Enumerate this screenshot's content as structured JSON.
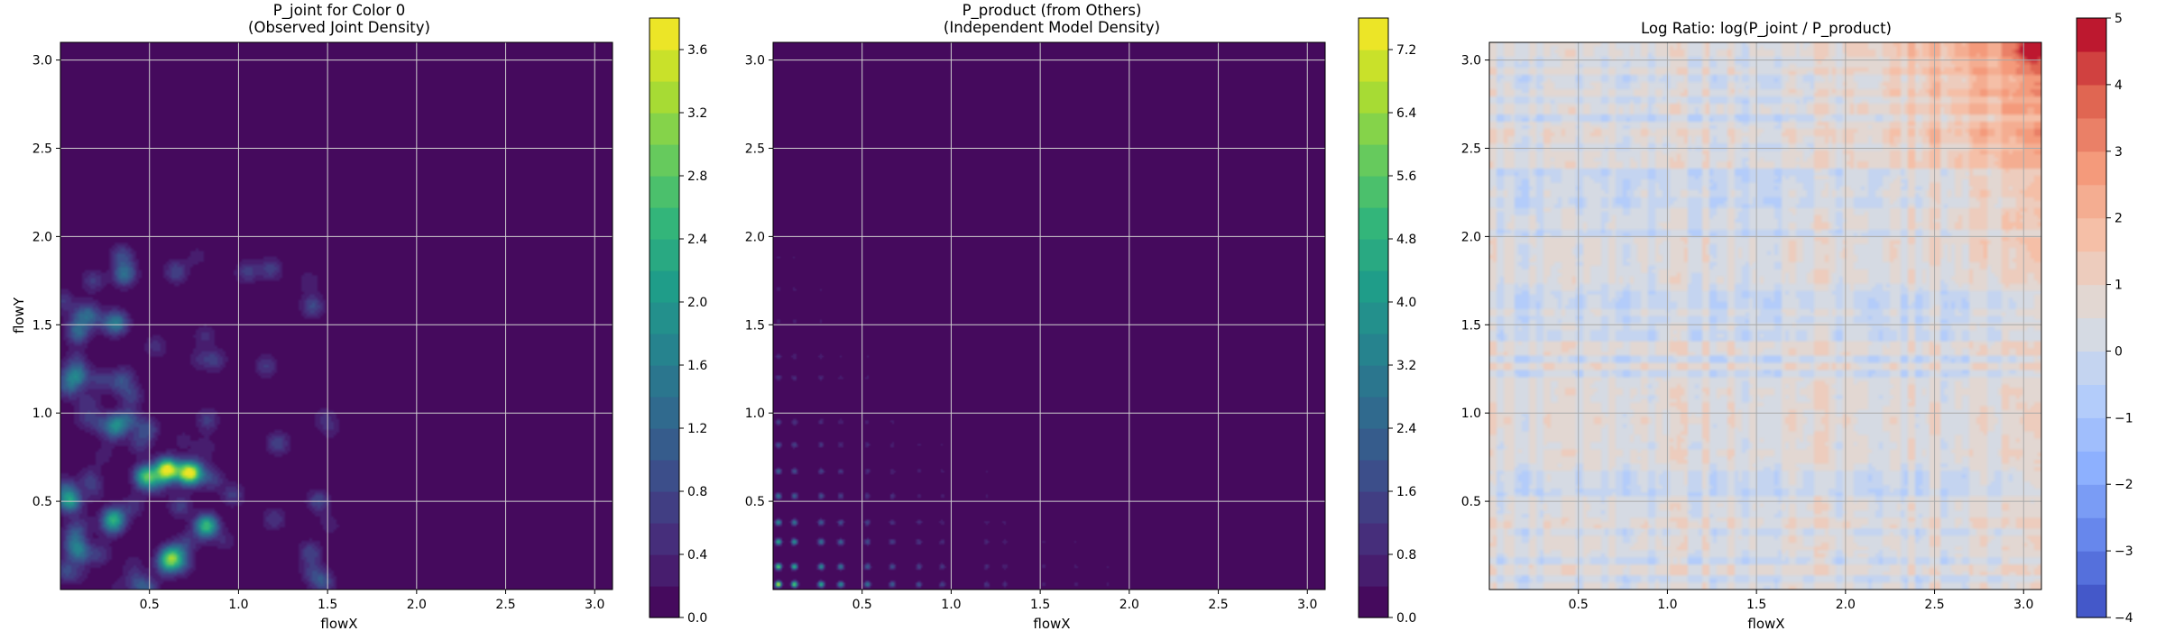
{
  "panels": [
    {
      "title_line1": "P_joint for Color 0",
      "title_line2": "(Observed Joint Density)",
      "xlabel": "flowX",
      "ylabel": "flowY",
      "colormap": "viridis",
      "colorbar_ticks": [
        "0.0",
        "0.4",
        "0.8",
        "1.2",
        "1.6",
        "2.0",
        "2.4",
        "2.8",
        "3.2",
        "3.6"
      ],
      "colorbar_range": [
        0.0,
        3.8
      ],
      "xticks": [
        "0.5",
        "1.0",
        "1.5",
        "2.0",
        "2.5",
        "3.0"
      ],
      "yticks": [
        "0.5",
        "1.0",
        "1.5",
        "2.0",
        "2.5",
        "3.0"
      ]
    },
    {
      "title_line1": "P_product (from Others)",
      "title_line2": "(Independent Model Density)",
      "xlabel": "flowX",
      "ylabel": "",
      "colormap": "viridis",
      "colorbar_ticks": [
        "0.0",
        "0.8",
        "1.6",
        "2.4",
        "3.2",
        "4.0",
        "4.8",
        "5.6",
        "6.4",
        "7.2"
      ],
      "colorbar_range": [
        0.0,
        7.6
      ],
      "xticks": [
        "0.5",
        "1.0",
        "1.5",
        "2.0",
        "2.5",
        "3.0"
      ],
      "yticks": [
        "0.5",
        "1.0",
        "1.5",
        "2.0",
        "2.5",
        "3.0"
      ]
    },
    {
      "title_line1": "Log Ratio: log(P_joint / P_product)",
      "title_line2": "",
      "xlabel": "flowX",
      "ylabel": "",
      "colormap": "coolwarm",
      "colorbar_ticks": [
        "−4",
        "−3",
        "−2",
        "−1",
        "0",
        "1",
        "2",
        "3",
        "4",
        "5"
      ],
      "colorbar_range": [
        -4,
        5
      ],
      "xticks": [
        "0.5",
        "1.0",
        "1.5",
        "2.0",
        "2.5",
        "3.0"
      ],
      "yticks": [
        "0.5",
        "1.0",
        "1.5",
        "2.0",
        "2.5",
        "3.0"
      ]
    }
  ],
  "chart_data": [
    {
      "type": "heatmap",
      "title": "P_joint for Color 0 (Observed Joint Density)",
      "xlabel": "flowX",
      "ylabel": "flowY",
      "xlim": [
        0.0,
        3.1
      ],
      "ylim": [
        0.0,
        3.1
      ],
      "zlim": [
        0.0,
        3.8
      ],
      "grid": true,
      "colorbar": "right",
      "hotspots": [
        {
          "x": 0.48,
          "y": 0.64,
          "v": 2.6
        },
        {
          "x": 0.6,
          "y": 0.68,
          "v": 3.7
        },
        {
          "x": 0.72,
          "y": 0.66,
          "v": 3.6
        },
        {
          "x": 0.82,
          "y": 0.36,
          "v": 2.6
        },
        {
          "x": 0.62,
          "y": 0.18,
          "v": 2.6
        },
        {
          "x": 0.3,
          "y": 0.4,
          "v": 2.2
        },
        {
          "x": 0.05,
          "y": 0.5,
          "v": 2.0
        },
        {
          "x": 0.1,
          "y": 1.45,
          "v": 1.0
        },
        {
          "x": 0.65,
          "y": 1.8,
          "v": 0.8
        },
        {
          "x": 1.05,
          "y": 1.8,
          "v": 0.7
        },
        {
          "x": 1.45,
          "y": 0.5,
          "v": 0.8
        },
        {
          "x": 1.2,
          "y": 0.4,
          "v": 0.6
        },
        {
          "x": 0.4,
          "y": 1.1,
          "v": 0.7
        }
      ]
    },
    {
      "type": "heatmap",
      "title": "P_product (from Others) (Independent Model Density)",
      "xlabel": "flowX",
      "xlim": [
        0.0,
        3.1
      ],
      "ylim": [
        0.0,
        3.1
      ],
      "zlim": [
        0.0,
        7.6
      ],
      "grid": true,
      "colorbar": "right",
      "row_peaks_y": [
        0.03,
        0.13,
        0.27,
        0.38,
        0.53,
        0.67,
        0.82,
        0.95,
        1.2,
        1.32,
        1.52,
        1.7,
        1.88,
        2.08
      ],
      "col_peaks_x": [
        0.03,
        0.12,
        0.27,
        0.38,
        0.53,
        0.67,
        0.82,
        0.95,
        1.2,
        1.3,
        1.52,
        1.7,
        1.88,
        2.08
      ],
      "max_value": 7.4,
      "max_location": {
        "x": 0.03,
        "y": 0.03
      }
    },
    {
      "type": "heatmap",
      "title": "Log Ratio: log(P_joint / P_product)",
      "xlabel": "flowX",
      "xlim": [
        0.0,
        3.1
      ],
      "ylim": [
        0.0,
        3.1
      ],
      "zlim": [
        -4,
        5
      ],
      "grid": true,
      "colorbar": "right",
      "typical_range": [
        -2,
        4
      ],
      "max_location": {
        "x": 3.05,
        "y": 3.05
      }
    }
  ]
}
